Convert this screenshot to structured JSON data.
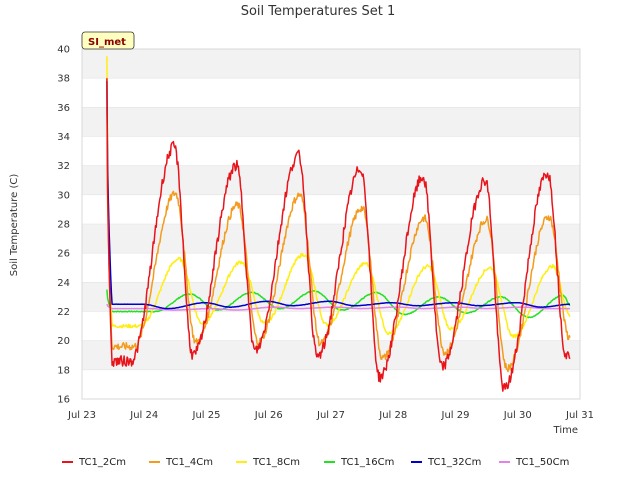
{
  "chart_data": {
    "type": "line",
    "title": "Soil Temperatures Set 1",
    "xlabel": "Time",
    "ylabel": "Soil Temperature (C)",
    "tag": "SI_met",
    "x_ticks": [
      "Jul 23",
      "Jul 24",
      "Jul 25",
      "Jul 26",
      "Jul 27",
      "Jul 28",
      "Jul 29",
      "Jul 30",
      "Jul 31"
    ],
    "y_ticks": [
      16,
      18,
      20,
      22,
      24,
      26,
      28,
      30,
      32,
      34,
      36,
      38,
      40
    ],
    "xlim": [
      0,
      8
    ],
    "ylim": [
      16,
      40
    ],
    "x_unit": "days since Jul 23 00:00",
    "series_start_day": 0.4,
    "series_end_day": 7.85,
    "grid": "horizontal bands",
    "legend_position": "bottom",
    "series": [
      {
        "name": "TC1_2Cm",
        "color": "#e8141b",
        "start": 38.0,
        "daily_min": [
          18.6,
          19.0,
          19.3,
          18.9,
          17.5,
          18.2,
          16.7,
          19.0
        ],
        "daily_max": [
          33.3,
          32.0,
          32.7,
          31.8,
          31.2,
          31.0,
          31.5
        ],
        "peak_frac": 0.6,
        "min_frac": 0.0
      },
      {
        "name": "TC1_4Cm",
        "color": "#f39b1c",
        "start": 36.0,
        "daily_min": [
          19.6,
          19.9,
          19.9,
          19.8,
          18.8,
          19.2,
          18.1,
          20.2
        ],
        "daily_max": [
          30.1,
          29.3,
          30.0,
          29.1,
          28.4,
          28.3,
          28.5
        ],
        "peak_frac": 0.62,
        "min_frac": 0.05
      },
      {
        "name": "TC1_8Cm",
        "color": "#ffee11",
        "start": 39.5,
        "daily_min": [
          21.0,
          21.2,
          21.2,
          21.1,
          20.5,
          20.8,
          20.3,
          21.7
        ],
        "daily_max": [
          25.6,
          25.4,
          25.9,
          25.3,
          25.1,
          25.0,
          25.1
        ],
        "peak_frac": 0.68,
        "min_frac": 0.15
      },
      {
        "name": "TC1_16Cm",
        "color": "#22e022",
        "start": 23.5,
        "daily_min": [
          22.0,
          22.1,
          22.2,
          22.1,
          21.8,
          21.9,
          21.6,
          22.4
        ],
        "daily_max": [
          23.2,
          23.3,
          23.4,
          23.3,
          23.0,
          23.0,
          23.1
        ],
        "peak_frac": 0.85,
        "min_frac": 0.4
      },
      {
        "name": "TC1_32Cm",
        "color": "#0000cc",
        "start": 37.8,
        "daily_min": [
          22.2,
          22.3,
          22.4,
          22.4,
          22.4,
          22.4,
          22.3,
          22.5
        ],
        "daily_max": [
          22.5,
          22.6,
          22.7,
          22.7,
          22.6,
          22.6,
          22.6
        ],
        "peak_frac": 0.1,
        "min_frac": 0.6
      },
      {
        "name": "TC1_50Cm",
        "color": "#e382e8",
        "start": 22.5,
        "daily_min": [
          22.1,
          22.1,
          22.2,
          22.2,
          22.2,
          22.2,
          22.2,
          22.2
        ],
        "daily_max": [
          22.2,
          22.2,
          22.3,
          22.3,
          22.3,
          22.3,
          22.3
        ],
        "peak_frac": 0.2,
        "min_frac": 0.7
      }
    ]
  }
}
